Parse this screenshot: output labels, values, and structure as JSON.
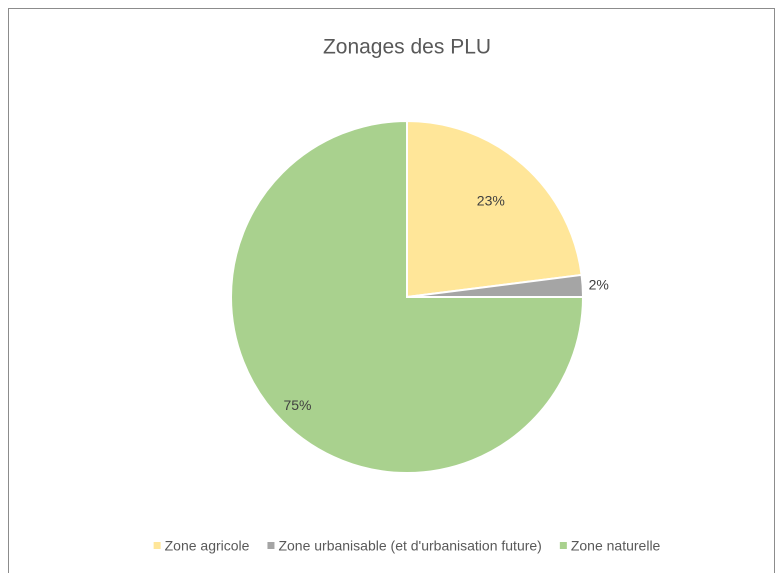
{
  "chart_data": {
    "type": "pie",
    "title": "Zonages des PLU",
    "categories": [
      "Zone agricole",
      "Zone urbanisable (et d'urbanisation future)",
      "Zone naturelle"
    ],
    "values": [
      23,
      2,
      75
    ],
    "value_labels": [
      "23%",
      "2%",
      "75%"
    ],
    "colors": [
      "#FFE699",
      "#A5A5A5",
      "#A9D18E"
    ],
    "legend": "bottom"
  }
}
